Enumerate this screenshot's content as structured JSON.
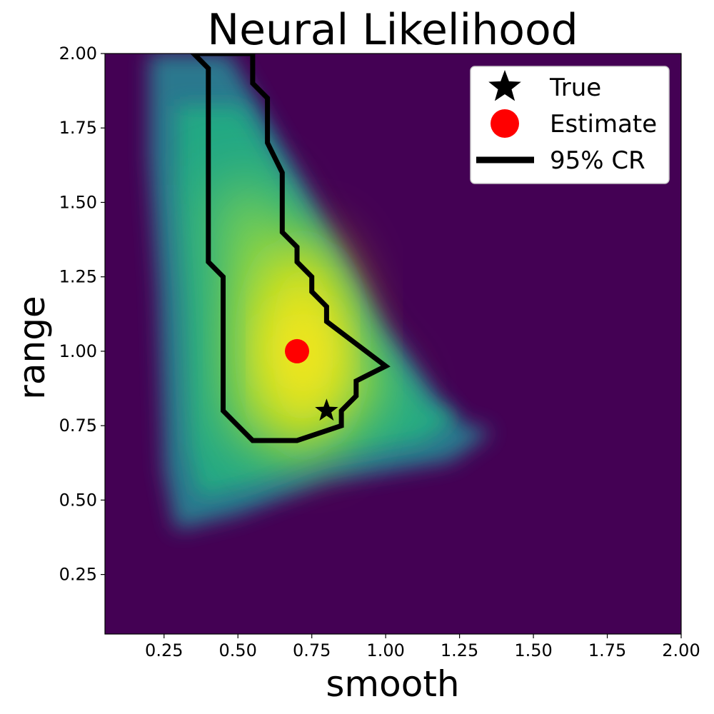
{
  "chart_data": {
    "type": "heatmap",
    "title": "Neural Likelihood",
    "xlabel": "smooth",
    "ylabel": "range",
    "xlim": [
      0.05,
      2.0
    ],
    "ylim": [
      0.05,
      2.0
    ],
    "xticks": [
      "0.25",
      "0.50",
      "0.75",
      "1.00",
      "1.25",
      "1.50",
      "1.75",
      "2.00"
    ],
    "yticks": [
      "0.25",
      "0.50",
      "0.75",
      "1.00",
      "1.25",
      "1.50",
      "1.75",
      "2.00"
    ],
    "xtick_values": [
      0.25,
      0.5,
      0.75,
      1.0,
      1.25,
      1.5,
      1.75,
      2.0
    ],
    "ytick_values": [
      0.25,
      0.5,
      0.75,
      1.0,
      1.25,
      1.5,
      1.75,
      2.0
    ],
    "colormap": "viridis",
    "background_color": "#440154",
    "support_region": [
      [
        0.2,
        2.0
      ],
      [
        0.47,
        2.0
      ],
      [
        1.0,
        1.08
      ],
      [
        1.15,
        0.88
      ],
      [
        1.25,
        0.76
      ],
      [
        1.36,
        0.73
      ],
      [
        1.22,
        0.63
      ],
      [
        0.8,
        0.56
      ],
      [
        0.5,
        0.45
      ],
      [
        0.29,
        0.4
      ],
      [
        0.25,
        0.6
      ],
      [
        0.23,
        1.2
      ],
      [
        0.2,
        1.65
      ]
    ],
    "peak": [
      0.72,
      1.02
    ],
    "true": {
      "label": "True",
      "x": 0.8,
      "y": 0.8,
      "marker": "star",
      "color": "#000000"
    },
    "estimate": {
      "label": "Estimate",
      "x": 0.7,
      "y": 1.0,
      "marker": "circle",
      "color": "#ff0000"
    },
    "credible_region": {
      "label": "95% CR",
      "color": "#000000",
      "points": [
        [
          0.35,
          2.0
        ],
        [
          0.55,
          2.0
        ],
        [
          0.55,
          1.9
        ],
        [
          0.6,
          1.85
        ],
        [
          0.6,
          1.7
        ],
        [
          0.65,
          1.6
        ],
        [
          0.65,
          1.4
        ],
        [
          0.7,
          1.35
        ],
        [
          0.7,
          1.3
        ],
        [
          0.75,
          1.25
        ],
        [
          0.75,
          1.2
        ],
        [
          0.8,
          1.15
        ],
        [
          0.8,
          1.1
        ],
        [
          1.0,
          0.95
        ],
        [
          0.9,
          0.9
        ],
        [
          0.9,
          0.85
        ],
        [
          0.85,
          0.8
        ],
        [
          0.85,
          0.75
        ],
        [
          0.7,
          0.7
        ],
        [
          0.6,
          0.7
        ],
        [
          0.55,
          0.7
        ],
        [
          0.5,
          0.75
        ],
        [
          0.45,
          0.8
        ],
        [
          0.45,
          1.25
        ],
        [
          0.4,
          1.3
        ],
        [
          0.4,
          1.95
        ],
        [
          0.35,
          2.0
        ]
      ]
    },
    "legend_position": "top-right",
    "legend_entries": [
      "True",
      "Estimate",
      "95% CR"
    ]
  }
}
